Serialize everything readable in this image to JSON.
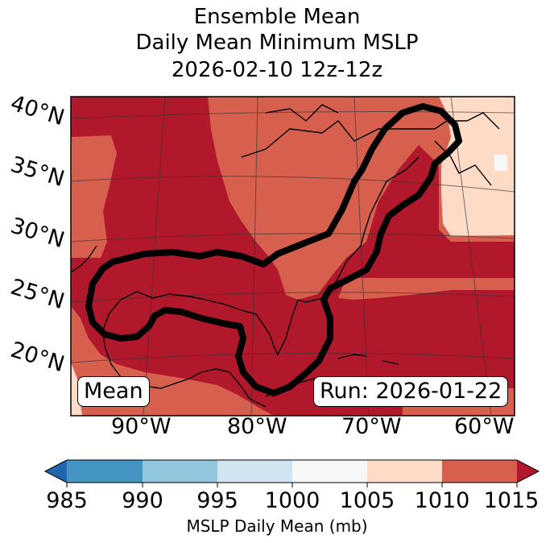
{
  "title": {
    "line1": "Ensemble Mean",
    "line2": "Daily Mean Minimum MSLP",
    "line3": "2026-02-10 12z-12z"
  },
  "map": {
    "lat_labels": [
      "40°N",
      "35°N",
      "30°N",
      "25°N",
      "20°N"
    ],
    "lon_labels": [
      "90°W",
      "80°W",
      "70°W",
      "60°W"
    ],
    "mean_badge": "Mean",
    "run_badge": "Run: 2026-01-22",
    "colors": {
      "dark_red": "#b2182b",
      "red": "#d6604d",
      "light_peach": "#fddbc7",
      "white": "#f7f7f7",
      "contour": "#000000"
    }
  },
  "colorbar": {
    "ticks": [
      "985",
      "990",
      "995",
      "1000",
      "1005",
      "1010",
      "1015"
    ],
    "label": "MSLP Daily Mean (mb)",
    "colors": [
      "#4393c3",
      "#92c5de",
      "#d1e5f0",
      "#f7f7f7",
      "#fddbc7",
      "#d6604d"
    ],
    "under_color": "#2166ac",
    "over_color": "#b2182b"
  }
}
